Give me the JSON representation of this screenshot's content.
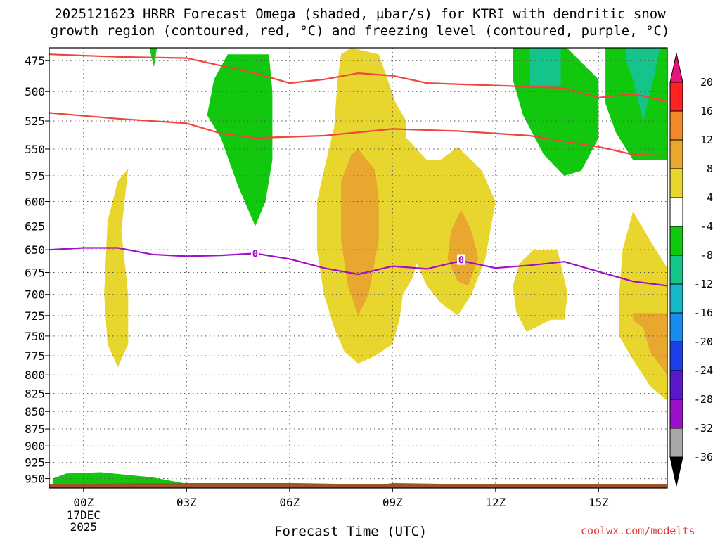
{
  "chart_data": {
    "type": "heatmap",
    "title_line1": "2025121623 HRRR Forecast Omega (shaded, µbar/s) for KTRI with dendritic snow",
    "title_line2": "growth region (contoured, red, °C) and freezing level (contoured, purple, °C)",
    "xlabel": "Forecast Time (UTC)",
    "credit": "coolwx.com/modelts",
    "x_ticks": [
      "00Z",
      "03Z",
      "06Z",
      "09Z",
      "12Z",
      "15Z"
    ],
    "x_tick_hours": [
      0,
      3,
      6,
      9,
      12,
      15
    ],
    "date_label": [
      "17DEC",
      "2025"
    ],
    "xlim": [
      -1,
      17
    ],
    "y_ticks": [
      475,
      500,
      525,
      550,
      575,
      600,
      625,
      650,
      675,
      700,
      725,
      750,
      775,
      800,
      825,
      850,
      875,
      900,
      925,
      950
    ],
    "ylim": [
      465,
      965
    ],
    "y_scale": "log-pressure, inverted (hPa)",
    "grid": true,
    "colorbar": {
      "levels": [
        20,
        16,
        12,
        8,
        4,
        -4,
        -8,
        -12,
        -16,
        -20,
        -24,
        -28,
        -32,
        -36
      ],
      "colors": [
        "#ff2222",
        "#f08a2a",
        "#e8a830",
        "#e8d62e",
        "#ffffff",
        "#12c80e",
        "#14c48a",
        "#16b8c8",
        "#1a8cf0",
        "#1c40e6",
        "#5a18c8",
        "#9a10c8",
        "#a8a8a8"
      ],
      "top_color": "#e8147c",
      "bottom_color": "#000000"
    },
    "freezing_level_label": "0",
    "freezing_level": {
      "x": [
        -1,
        0,
        1,
        2,
        3,
        4,
        5,
        6,
        7,
        8,
        9,
        10,
        11,
        12,
        13,
        14,
        15,
        16,
        17
      ],
      "pressure": [
        650,
        648,
        648,
        655,
        657,
        656,
        654,
        660,
        670,
        677,
        668,
        671,
        662,
        670,
        667,
        663,
        674,
        685,
        690
      ]
    },
    "dgz_top": {
      "x": [
        -1,
        1,
        3,
        5,
        6,
        7,
        8,
        9,
        10,
        12,
        14,
        15,
        16,
        17
      ],
      "pressure": [
        470,
        472,
        473,
        485,
        493,
        490,
        485,
        487,
        493,
        495,
        497,
        505,
        502,
        508
      ]
    },
    "dgz_bottom": {
      "x": [
        -1,
        1,
        3,
        4,
        5,
        7,
        9,
        11,
        13,
        15,
        16,
        17
      ],
      "pressure": [
        518,
        523,
        527,
        536,
        540,
        538,
        532,
        534,
        538,
        548,
        555,
        556
      ]
    }
  }
}
